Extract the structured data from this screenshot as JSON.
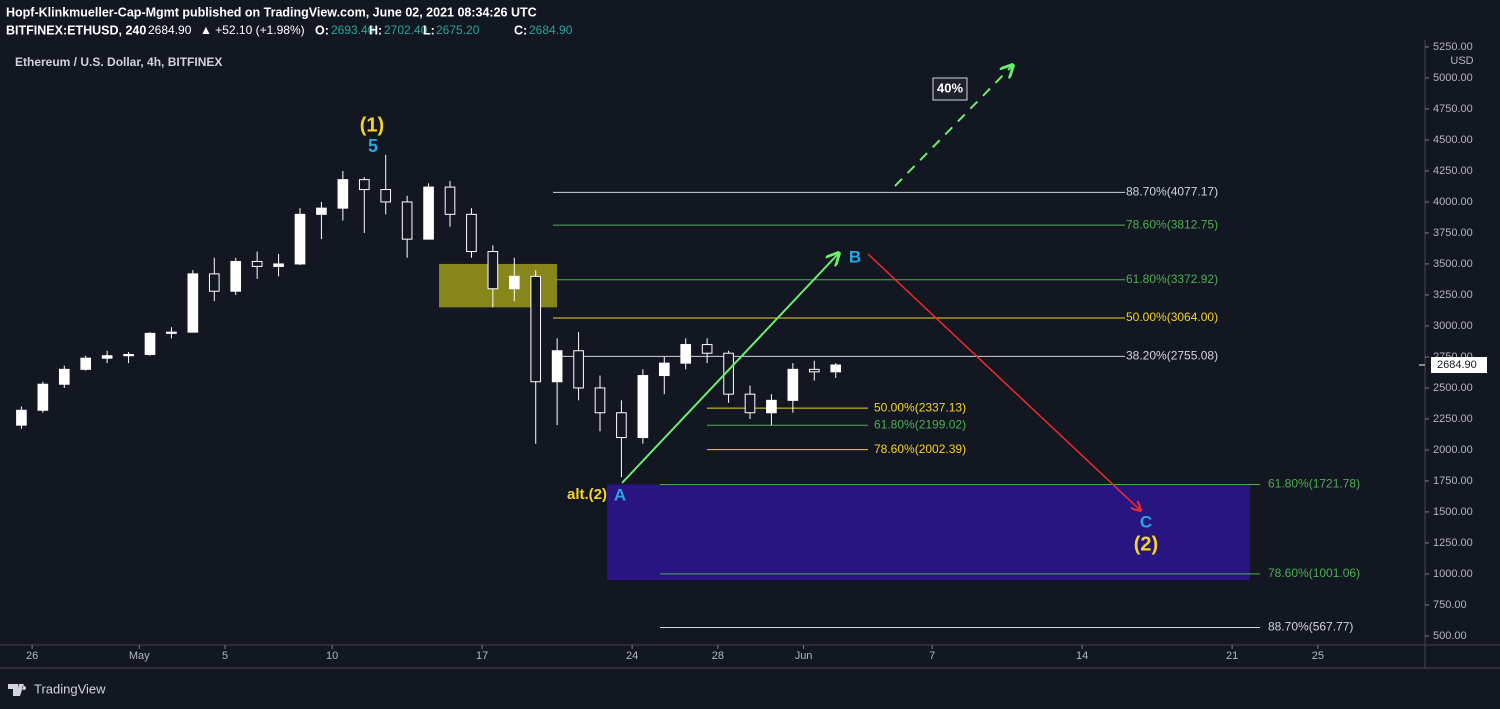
{
  "header": {
    "publisher": "Hopf-Klinkmueller-Cap-Mgmt published on TradingView.com, June 02, 2021 08:34:26 UTC",
    "symbol": "BITFINEX:ETHUSD, 240",
    "last": "2684.90",
    "change": "▲ +52.10 (+1.98%)",
    "open_label": "O:",
    "open": "2693.40",
    "high_label": "H:",
    "high": "2702.40",
    "low_label": "L:",
    "low": "2675.20",
    "close_label": "C:",
    "close": "2684.90"
  },
  "chart_data": {
    "type": "candlestick",
    "title": "Ethereum / U.S. Dollar, 4h, BITFINEX",
    "y_unit": "USD",
    "x": [
      "2021-04-25",
      "2021-04-26",
      "2021-04-27",
      "2021-04-28",
      "2021-04-29",
      "2021-04-30",
      "2021-05-01",
      "2021-05-02",
      "2021-05-03",
      "2021-05-04",
      "2021-05-05",
      "2021-05-06",
      "2021-05-07",
      "2021-05-08",
      "2021-05-09",
      "2021-05-10",
      "2021-05-11",
      "2021-05-12",
      "2021-05-13",
      "2021-05-14",
      "2021-05-15",
      "2021-05-16",
      "2021-05-17",
      "2021-05-18",
      "2021-05-19",
      "2021-05-20",
      "2021-05-21",
      "2021-05-22",
      "2021-05-23",
      "2021-05-24",
      "2021-05-25",
      "2021-05-26",
      "2021-05-27",
      "2021-05-28",
      "2021-05-29",
      "2021-05-30",
      "2021-05-31",
      "2021-06-01",
      "2021-06-02"
    ],
    "open": [
      2200,
      2320,
      2530,
      2650,
      2740,
      2760,
      2770,
      2940,
      2950,
      3420,
      3280,
      3520,
      3480,
      3500,
      3900,
      3950,
      4180,
      4100,
      4000,
      3700,
      4120,
      3900,
      3600,
      3300,
      3400,
      2550,
      2800,
      2500,
      2300,
      2100,
      2600,
      2700,
      2850,
      2780,
      2450,
      2300,
      2400,
      2650,
      2630
    ],
    "high": [
      2350,
      2550,
      2680,
      2760,
      2800,
      2790,
      2950,
      2990,
      3450,
      3550,
      3550,
      3600,
      3580,
      3950,
      4000,
      4250,
      4200,
      4380,
      4050,
      4150,
      4170,
      3950,
      3650,
      3550,
      3450,
      2900,
      2950,
      2600,
      2400,
      2650,
      2750,
      2900,
      2900,
      2800,
      2520,
      2450,
      2700,
      2720,
      2700
    ],
    "low": [
      2170,
      2300,
      2500,
      2640,
      2700,
      2700,
      2760,
      2900,
      2950,
      3200,
      3250,
      3380,
      3400,
      3490,
      3700,
      3850,
      3750,
      3900,
      3550,
      3700,
      3800,
      3550,
      3150,
      3200,
      2050,
      2200,
      2400,
      2150,
      1780,
      2050,
      2450,
      2650,
      2700,
      2380,
      2250,
      2200,
      2300,
      2560,
      2580
    ],
    "close": [
      2320,
      2530,
      2650,
      2740,
      2760,
      2770,
      2940,
      2950,
      3420,
      3280,
      3520,
      3480,
      3500,
      3900,
      3950,
      4180,
      4100,
      4000,
      3700,
      4120,
      3900,
      3600,
      3300,
      3400,
      2550,
      2800,
      2500,
      2300,
      2100,
      2600,
      2700,
      2850,
      2780,
      2450,
      2300,
      2400,
      2650,
      2630,
      2685
    ],
    "color": "#ffffff",
    "xlim": [
      "2021-04-24T12:00",
      "2021-06-30T00:00"
    ],
    "xticks": [
      {
        "value": "2021-04-26",
        "label": "26"
      },
      {
        "value": "2021-05-01",
        "label": "May"
      },
      {
        "value": "2021-05-05",
        "label": "5"
      },
      {
        "value": "2021-05-10",
        "label": "10"
      },
      {
        "value": "2021-05-17",
        "label": "17"
      },
      {
        "value": "2021-05-24",
        "label": "24"
      },
      {
        "value": "2021-05-28",
        "label": "28"
      },
      {
        "value": "2021-06-01",
        "label": "Jun"
      },
      {
        "value": "2021-06-07",
        "label": "7"
      },
      {
        "value": "2021-06-14",
        "label": "14"
      },
      {
        "value": "2021-06-21",
        "label": "21"
      },
      {
        "value": "2021-06-25",
        "label": "25"
      }
    ],
    "ylim": [
      427,
      5306
    ],
    "yticks": [
      {
        "value": 500,
        "label": "500.00"
      },
      {
        "value": 750,
        "label": "750.00"
      },
      {
        "value": 1000,
        "label": "1000.00"
      },
      {
        "value": 1250,
        "label": "1250.00"
      },
      {
        "value": 1500,
        "label": "1500.00"
      },
      {
        "value": 1750,
        "label": "1750.00"
      },
      {
        "value": 2000,
        "label": "2000.00"
      },
      {
        "value": 2250,
        "label": "2250.00"
      },
      {
        "value": 2500,
        "label": "2500.00"
      },
      {
        "value": 2750,
        "label": "2750.00"
      },
      {
        "value": 3000,
        "label": "3000.00"
      },
      {
        "value": 3250,
        "label": "3250.00"
      },
      {
        "value": 3500,
        "label": "3500.00"
      },
      {
        "value": 3750,
        "label": "3750.00"
      },
      {
        "value": 4000,
        "label": "4000.00"
      },
      {
        "value": 4250,
        "label": "4250.00"
      },
      {
        "value": 4500,
        "label": "4500.00"
      },
      {
        "value": 4750,
        "label": "4750.00"
      },
      {
        "value": 5000,
        "label": "5000.00"
      },
      {
        "value": 5250,
        "label": "5250.00"
      }
    ],
    "last_price": {
      "value": 2684.9,
      "label": "2684.90"
    },
    "fib_upper": [
      {
        "value": 4077.17,
        "label": "88.70%(4077.17)",
        "color": "#d1d4dc"
      },
      {
        "value": 3812.75,
        "label": "78.60%(3812.75)",
        "color": "#4caf50"
      },
      {
        "value": 3372.92,
        "label": "61.80%(3372.92)",
        "color": "#4caf50"
      },
      {
        "value": 3064.0,
        "label": "50.00%(3064.00)",
        "color": "#f5d327"
      },
      {
        "value": 2755.08,
        "label": "38.20%(2755.08)",
        "color": "#d1d4dc"
      }
    ],
    "fib_inner": [
      {
        "value": 2337.13,
        "label": "50.00%(2337.13)",
        "color": "#f5d327"
      },
      {
        "value": 2199.02,
        "label": "61.80%(2199.02)",
        "color": "#4caf50"
      },
      {
        "value": 2002.39,
        "label": "78.60%(2002.39)",
        "color": "#f5d327"
      }
    ],
    "fib_lower": [
      {
        "value": 1721.78,
        "label": "61.80%(1721.78)",
        "color": "#4caf50"
      },
      {
        "value": 1001.06,
        "label": "78.60%(1001.06)",
        "color": "#4caf50"
      },
      {
        "value": 567.77,
        "label": "88.70%(567.77)",
        "color": "#d1d4dc"
      }
    ],
    "zones": [
      {
        "top": 3500,
        "bottom": 3150,
        "color": "#9c9a1a"
      },
      {
        "top": 1721.78,
        "bottom": 950,
        "color": "#2e1593"
      }
    ],
    "annotations": [
      {
        "text": "(1)",
        "color": "#f5d327"
      },
      {
        "text": "5",
        "color": "#29a8e0"
      },
      {
        "text": "B",
        "color": "#29a8e0"
      },
      {
        "text": "alt.(2)",
        "color": "#f5d327"
      },
      {
        "text": "A",
        "color": "#29a8e0"
      },
      {
        "text": "C",
        "color": "#29a8e0"
      },
      {
        "text": "(2)",
        "color": "#f5d327"
      },
      {
        "text": "40%",
        "color": "#ffffff"
      }
    ]
  },
  "footer": {
    "brand": "TradingView"
  }
}
